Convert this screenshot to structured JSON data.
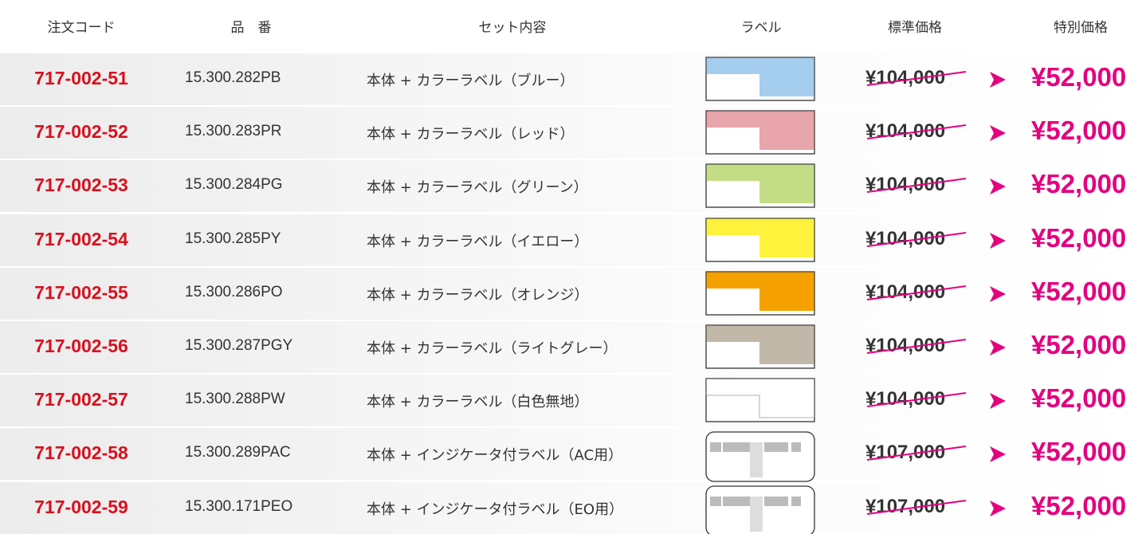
{
  "table": {
    "headers": [
      "注文コード",
      "品　番",
      "セット内容",
      "ラベル",
      "標準価格",
      "特別価格"
    ],
    "rows": [
      {
        "code": "717-002-51",
        "part": "15.300.282PB",
        "content": "本体 + カラーラベル（ブルー）",
        "swatch": "#a5cdee",
        "price": "¥104,000",
        "special": "¥52,000"
      },
      {
        "code": "717-002-52",
        "part": "15.300.283PR",
        "content": "本体 + カラーラベル（レッド）",
        "swatch": "#e8a5ac",
        "price": "¥104,000",
        "special": "¥52,000"
      },
      {
        "code": "717-002-53",
        "part": "15.300.284PG",
        "content": "本体 + カラーラベル（グリーン）",
        "swatch": "#c3dd86",
        "price": "¥104,000",
        "special": "¥52,000"
      },
      {
        "code": "717-002-54",
        "part": "15.300.285PY",
        "content": "本体 + カラーラベル（イエロー）",
        "swatch": "#fff23c",
        "price": "¥104,000",
        "special": "¥52,000"
      },
      {
        "code": "717-002-55",
        "part": "15.300.286PO",
        "content": "本体 + カラーラベル（オレンジ）",
        "swatch": "#f5a100",
        "price": "¥104,000",
        "special": "¥52,000"
      },
      {
        "code": "717-002-56",
        "part": "15.300.287PGY",
        "content": "本体 + カラーラベル（ライトグレー）",
        "swatch": "#c2b8aa",
        "price": "¥104,000",
        "special": "¥52,000"
      },
      {
        "code": "717-002-57",
        "part": "15.300.288PW",
        "content": "本体 + カラーラベル（白色無地）",
        "swatch": "#ffffff",
        "price": "¥104,000",
        "special": "¥52,000"
      },
      {
        "code": "717-002-58",
        "part": "15.300.289PAC",
        "content": "本体 + インジケータ付ラベル（AC用）",
        "price": "¥107,000",
        "special": "¥52,000"
      },
      {
        "code": "717-002-59",
        "part": "15.300.171PEO",
        "content": "本体 + インジケータ付ラベル（EO用）",
        "price": "¥107,000",
        "special": "¥52,000"
      }
    ]
  }
}
